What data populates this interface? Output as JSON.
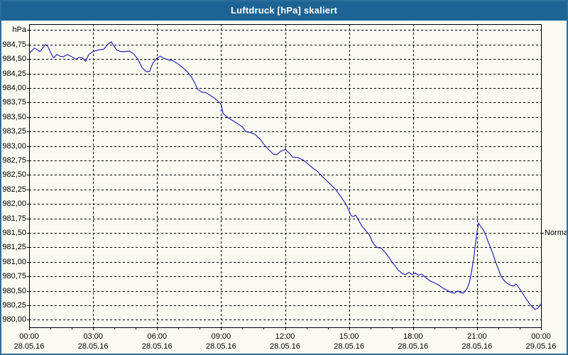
{
  "window": {
    "title": "Luftdruck [hPa] skaliert",
    "titlebar_color": "#1d6494",
    "border_color": "#2c6e9c",
    "client_background": "#fafaf2"
  },
  "chart": {
    "unit_label": "hPa",
    "normal_label": "Normal",
    "grid_color": "#000000",
    "y_tick_labels": [
      {
        "value": 984.75,
        "label": "984,75"
      },
      {
        "value": 984.5,
        "label": "984,50"
      },
      {
        "value": 984.25,
        "label": "984,25"
      },
      {
        "value": 984.0,
        "label": "984,00"
      },
      {
        "value": 983.75,
        "label": "983,75"
      },
      {
        "value": 983.5,
        "label": "983,50"
      },
      {
        "value": 983.25,
        "label": "983,25"
      },
      {
        "value": 983.0,
        "label": "983,00"
      },
      {
        "value": 982.75,
        "label": "982,75"
      },
      {
        "value": 982.5,
        "label": "982,50"
      },
      {
        "value": 982.25,
        "label": "982,25"
      },
      {
        "value": 982.0,
        "label": "982,00"
      },
      {
        "value": 981.75,
        "label": "981,75"
      },
      {
        "value": 981.5,
        "label": "981,50"
      },
      {
        "value": 981.25,
        "label": "981,25"
      },
      {
        "value": 981.0,
        "label": "981,00"
      },
      {
        "value": 980.75,
        "label": "980,75"
      },
      {
        "value": 980.5,
        "label": "980,50"
      },
      {
        "value": 980.25,
        "label": "980,25"
      },
      {
        "value": 980.0,
        "label": "980,00"
      }
    ],
    "x_tick_labels": [
      {
        "hour": 0,
        "time": "00:00",
        "date": "28.05.16"
      },
      {
        "hour": 3,
        "time": "03:00",
        "date": "28.05.16"
      },
      {
        "hour": 6,
        "time": "06:00",
        "date": "28.05.16"
      },
      {
        "hour": 9,
        "time": "09:00",
        "date": "28.05.16"
      },
      {
        "hour": 12,
        "time": "12:00",
        "date": "28.05.16"
      },
      {
        "hour": 15,
        "time": "15:00",
        "date": "28.05.16"
      },
      {
        "hour": 18,
        "time": "18:00",
        "date": "28.05.16"
      },
      {
        "hour": 21,
        "time": "21:00",
        "date": "28.05.16"
      },
      {
        "hour": 24,
        "time": "00:00",
        "date": "29.05.16"
      }
    ]
  },
  "chart_data": {
    "type": "line",
    "title": "Luftdruck [hPa] skaliert",
    "ylabel": "hPa",
    "xlabel": "time, 28.05.16 00:00 to 29.05.16 00:00",
    "ylim": [
      979.87,
      985.12
    ],
    "y_gridline_range": [
      980.0,
      985.0
    ],
    "y_grid_step": 0.25,
    "x_major_grid_hours": 3,
    "x_minor_tick_hours": 1,
    "grid": "dashed black on light background",
    "legend_position": "none",
    "annotations": [
      {
        "label": "Normal",
        "y": 981.5,
        "side": "right"
      }
    ],
    "series": [
      {
        "name": "Luftdruck [hPa]",
        "color": "#1515b0",
        "points": [
          [
            0,
            984.6
          ],
          [
            0.12,
            984.64
          ],
          [
            0.25,
            984.69
          ],
          [
            0.4,
            984.66
          ],
          [
            0.5,
            984.63
          ],
          [
            0.62,
            984.68
          ],
          [
            0.75,
            984.75
          ],
          [
            0.88,
            984.72
          ],
          [
            1,
            984.62
          ],
          [
            1.15,
            984.52
          ],
          [
            1.3,
            984.58
          ],
          [
            1.45,
            984.55
          ],
          [
            1.6,
            984.54
          ],
          [
            1.8,
            984.58
          ],
          [
            2.05,
            984.53
          ],
          [
            2.2,
            984.5
          ],
          [
            2.35,
            984.53
          ],
          [
            2.5,
            984.52
          ],
          [
            2.65,
            984.46
          ],
          [
            2.8,
            984.58
          ],
          [
            3,
            984.63
          ],
          [
            3.25,
            984.66
          ],
          [
            3.5,
            984.67
          ],
          [
            3.7,
            984.76
          ],
          [
            3.85,
            984.8
          ],
          [
            3.95,
            984.74
          ],
          [
            4.1,
            984.66
          ],
          [
            4.3,
            984.63
          ],
          [
            4.5,
            984.63
          ],
          [
            4.7,
            984.64
          ],
          [
            4.9,
            984.59
          ],
          [
            5.1,
            984.5
          ],
          [
            5.3,
            984.35
          ],
          [
            5.5,
            984.28
          ],
          [
            5.65,
            984.29
          ],
          [
            5.8,
            984.43
          ],
          [
            6,
            984.52
          ],
          [
            6.15,
            984.55
          ],
          [
            6.3,
            984.52
          ],
          [
            6.5,
            984.49
          ],
          [
            6.75,
            984.47
          ],
          [
            7,
            984.41
          ],
          [
            7.15,
            984.37
          ],
          [
            7.4,
            984.29
          ],
          [
            7.6,
            984.2
          ],
          [
            7.75,
            984.1
          ],
          [
            7.9,
            983.98
          ],
          [
            8.1,
            983.93
          ],
          [
            8.3,
            983.92
          ],
          [
            8.55,
            983.86
          ],
          [
            8.75,
            983.81
          ],
          [
            9,
            983.72
          ],
          [
            9.1,
            983.56
          ],
          [
            9.25,
            983.51
          ],
          [
            9.5,
            983.45
          ],
          [
            9.75,
            983.39
          ],
          [
            10,
            983.33
          ],
          [
            10.15,
            983.25
          ],
          [
            10.4,
            983.23
          ],
          [
            10.6,
            983.2
          ],
          [
            10.85,
            983.11
          ],
          [
            11.05,
            983.01
          ],
          [
            11.25,
            982.93
          ],
          [
            11.45,
            982.86
          ],
          [
            11.6,
            982.85
          ],
          [
            11.8,
            982.91
          ],
          [
            12,
            982.94
          ],
          [
            12.2,
            982.88
          ],
          [
            12.35,
            982.81
          ],
          [
            12.6,
            982.8
          ],
          [
            12.85,
            982.76
          ],
          [
            13.05,
            982.7
          ],
          [
            13.3,
            982.62
          ],
          [
            13.5,
            982.57
          ],
          [
            13.7,
            982.49
          ],
          [
            13.95,
            982.4
          ],
          [
            14.15,
            982.33
          ],
          [
            14.35,
            982.26
          ],
          [
            14.55,
            982.16
          ],
          [
            14.7,
            982.08
          ],
          [
            14.85,
            982
          ],
          [
            15,
            981.88
          ],
          [
            15.1,
            981.8
          ],
          [
            15.2,
            981.78
          ],
          [
            15.3,
            981.81
          ],
          [
            15.45,
            981.72
          ],
          [
            15.6,
            981.62
          ],
          [
            15.8,
            981.53
          ],
          [
            15.95,
            981.47
          ],
          [
            16.1,
            981.34
          ],
          [
            16.3,
            981.25
          ],
          [
            16.5,
            981.24
          ],
          [
            16.7,
            981.16
          ],
          [
            16.85,
            981.09
          ],
          [
            17,
            981
          ],
          [
            17.15,
            980.94
          ],
          [
            17.3,
            980.86
          ],
          [
            17.5,
            980.8
          ],
          [
            17.65,
            980.78
          ],
          [
            17.8,
            980.82
          ],
          [
            17.95,
            980.78
          ],
          [
            18.1,
            980.81
          ],
          [
            18.25,
            980.77
          ],
          [
            18.4,
            980.79
          ],
          [
            18.6,
            980.73
          ],
          [
            18.8,
            980.67
          ],
          [
            19,
            980.64
          ],
          [
            19.2,
            980.6
          ],
          [
            19.4,
            980.55
          ],
          [
            19.6,
            980.51
          ],
          [
            19.8,
            980.47
          ],
          [
            19.95,
            980.46
          ],
          [
            20.1,
            980.5
          ],
          [
            20.2,
            980.47
          ],
          [
            20.35,
            980.46
          ],
          [
            20.45,
            980.5
          ],
          [
            20.55,
            980.55
          ],
          [
            20.65,
            980.66
          ],
          [
            20.75,
            980.85
          ],
          [
            20.85,
            981.08
          ],
          [
            20.92,
            981.3
          ],
          [
            21,
            981.52
          ],
          [
            21.07,
            981.67
          ],
          [
            21.17,
            981.61
          ],
          [
            21.3,
            981.55
          ],
          [
            21.42,
            981.45
          ],
          [
            21.53,
            981.34
          ],
          [
            21.65,
            981.23
          ],
          [
            21.77,
            981.11
          ],
          [
            21.88,
            980.99
          ],
          [
            22,
            980.88
          ],
          [
            22.1,
            980.78
          ],
          [
            22.22,
            980.7
          ],
          [
            22.38,
            980.64
          ],
          [
            22.55,
            980.6
          ],
          [
            22.7,
            980.58
          ],
          [
            22.83,
            980.62
          ],
          [
            22.95,
            980.56
          ],
          [
            23.1,
            980.48
          ],
          [
            23.27,
            980.38
          ],
          [
            23.45,
            980.28
          ],
          [
            23.6,
            980.22
          ],
          [
            23.72,
            980.18
          ],
          [
            23.85,
            980.2
          ],
          [
            23.97,
            980.27
          ]
        ]
      }
    ]
  }
}
